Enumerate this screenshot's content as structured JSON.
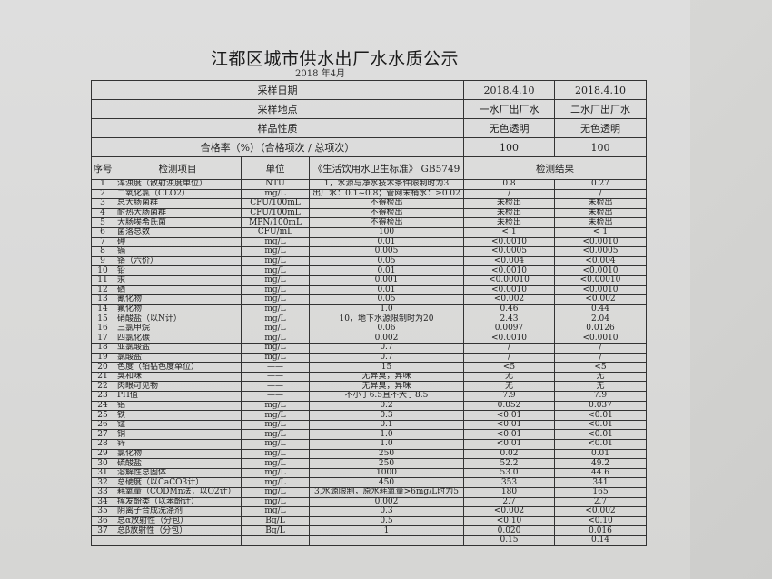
{
  "title": "江都区城市供水出厂水水质公示",
  "subtitle": "2018 年4月",
  "header_rows": [
    {
      "label": "采样日期",
      "v1": "2018.4.10",
      "v2": "2018.4.10"
    },
    {
      "label": "采样地点",
      "v1": "一水厂出厂水",
      "v2": "二水厂出厂水"
    },
    {
      "label": "样品性质",
      "v1": "无色透明",
      "v2": "无色透明"
    },
    {
      "label": "合格率（%）（合格项次 / 总项次）",
      "v1": "100",
      "v2": "100"
    }
  ],
  "columns": {
    "no": "序号",
    "item": "检测项目",
    "unit": "单位",
    "standard": "《生活饮用水卫生标准》 GB5749",
    "result": "检测结果"
  },
  "rows": [
    [
      "1",
      "浑浊度（散射浊度单位）",
      "NTU",
      "1，水源与净水技术条件限制时为3",
      "0.8",
      "0.27"
    ],
    [
      "2",
      "二氧化氯（CLO2）",
      "mg/L",
      "出厂水：0.1~0.8；管网末梢水：≥0.02",
      "/",
      "/"
    ],
    [
      "3",
      "总大肠菌群",
      "CFU/100mL",
      "不得检出",
      "未检出",
      "未检出"
    ],
    [
      "4",
      "耐热大肠菌群",
      "CFU/100mL",
      "不得检出",
      "未检出",
      "未检出"
    ],
    [
      "5",
      "大肠埃希氏菌",
      "MPN/100mL",
      "不得检出",
      "未检出",
      "未检出"
    ],
    [
      "6",
      "菌落总数",
      "CFU/mL",
      "100",
      "< 1",
      "< 1"
    ],
    [
      "7",
      "砷",
      "mg/L",
      "0.01",
      "<0.0010",
      "<0.0010"
    ],
    [
      "8",
      "镉",
      "mg/L",
      "0.005",
      "<0.0005",
      "<0.0005"
    ],
    [
      "9",
      "铬（六价）",
      "mg/L",
      "0.05",
      "<0.004",
      "<0.004"
    ],
    [
      "10",
      "铅",
      "mg/L",
      "0.01",
      "<0.0010",
      "<0.0010"
    ],
    [
      "11",
      "汞",
      "mg/L",
      "0.001",
      "<0.00010",
      "<0.00010"
    ],
    [
      "12",
      "硒",
      "mg/L",
      "0.01",
      "<0.0010",
      "<0.0010"
    ],
    [
      "13",
      "氰化物",
      "mg/L",
      "0.05",
      "<0.002",
      "<0.002"
    ],
    [
      "14",
      "氟化物",
      "mg/L",
      "1.0",
      "0.46",
      "0.44"
    ],
    [
      "15",
      "硝酸盐（以N计）",
      "mg/L",
      "10，地下水源限制时为20",
      "2.43",
      "2.04"
    ],
    [
      "16",
      "三氯甲烷",
      "mg/L",
      "0.06",
      "0.0097",
      "0.0126"
    ],
    [
      "17",
      "四氯化碳",
      "mg/L",
      "0.002",
      "<0.0010",
      "<0.0010"
    ],
    [
      "18",
      "亚氯酸盐",
      "mg/L",
      "0.7",
      "/",
      "/"
    ],
    [
      "19",
      "氯酸盐",
      "mg/L",
      "0.7",
      "/",
      "/"
    ],
    [
      "20",
      "色度（铂钴色度单位）",
      "——",
      "15",
      "<5",
      "<5"
    ],
    [
      "21",
      "臭和味",
      "——",
      "无异臭，异味",
      "无",
      "无"
    ],
    [
      "22",
      "肉眼可见物",
      "——",
      "无异臭，异味",
      "无",
      "无"
    ],
    [
      "23",
      "PH值",
      "——",
      "不小于6.5且不大于8.5",
      "7.9",
      "7.9"
    ],
    [
      "24",
      "铝",
      "mg/L",
      "0.2",
      "0.052",
      "0.037"
    ],
    [
      "25",
      "铁",
      "mg/L",
      "0.3",
      "<0.01",
      "<0.01"
    ],
    [
      "26",
      "锰",
      "mg/L",
      "0.1",
      "<0.01",
      "<0.01"
    ],
    [
      "27",
      "铜",
      "mg/L",
      "1.0",
      "<0.01",
      "<0.01"
    ],
    [
      "28",
      "锌",
      "mg/L",
      "1.0",
      "<0.01",
      "<0.01"
    ],
    [
      "29",
      "氯化物",
      "mg/L",
      "250",
      "0.02",
      "0.01"
    ],
    [
      "30",
      "硫酸盐",
      "mg/L",
      "250",
      "52.2",
      "49.2"
    ],
    [
      "31",
      "溶解性总固体",
      "mg/L",
      "1000",
      "53.0",
      "44.6"
    ],
    [
      "32",
      "总硬度（以CaCO3计）",
      "mg/L",
      "450",
      "353",
      "341"
    ],
    [
      "33",
      "耗氧量（CODMn法，以O2计）",
      "mg/L",
      "3,水源限制，原水耗氧量>6mg/L时为5",
      "180",
      "165"
    ],
    [
      "34",
      "挥发酚类（以苯酚计）",
      "mg/L",
      "0.002",
      "2.7",
      "2.7"
    ],
    [
      "35",
      "阴离子合成洗涤剂",
      "mg/L",
      "0.3",
      "<0.002",
      "<0.002"
    ],
    [
      "36",
      "总α放射性（分包）",
      "Bq/L",
      "0.5",
      "<0.10",
      "<0.10"
    ],
    [
      "37",
      "总β放射性（分包）",
      "Bq/L",
      "1",
      "0.020",
      "0.016"
    ],
    [
      "",
      "",
      "",
      "",
      "0.15",
      "0.14"
    ]
  ]
}
